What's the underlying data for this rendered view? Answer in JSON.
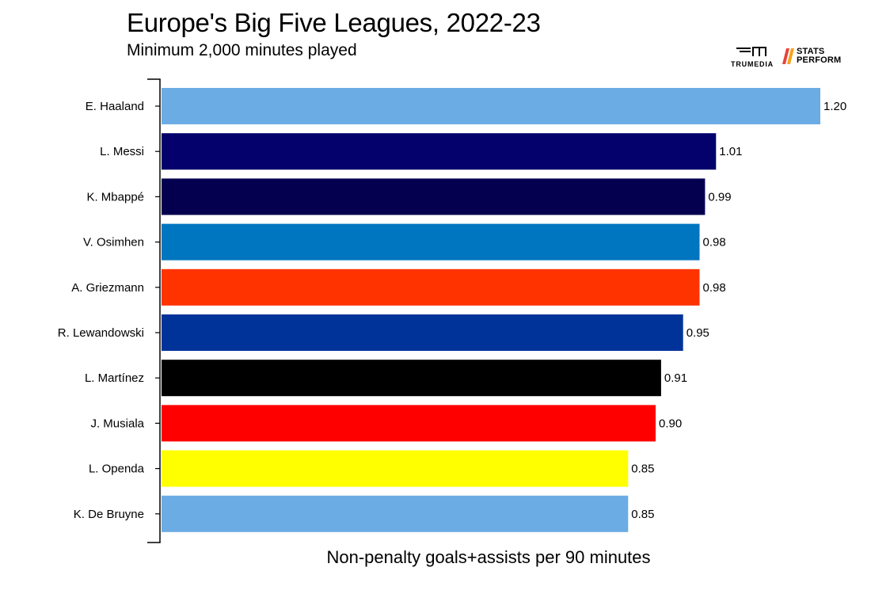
{
  "header": {
    "title": "Europe's Big Five Leagues, 2022-23",
    "subtitle": "Minimum 2,000 minutes played"
  },
  "logos": {
    "trumedia": "TRUMEDIA",
    "stats_perform_line1": "STATS",
    "stats_perform_line2": "PERFORM"
  },
  "chart_data": {
    "type": "bar",
    "orientation": "horizontal",
    "title": "Europe's Big Five Leagues, 2022-23",
    "subtitle": "Minimum 2,000 minutes played",
    "xlabel": "Non-penalty goals+assists per 90 minutes",
    "ylabel": "",
    "xlim": [
      0,
      1.2
    ],
    "grid": false,
    "categories": [
      "E. Haaland",
      "L. Messi",
      "K. Mbappé",
      "V. Osimhen",
      "A. Griezmann",
      "R. Lewandowski",
      "L. Martínez",
      "J. Musiala",
      "L. Openda",
      "K. De Bruyne"
    ],
    "values": [
      1.2,
      1.01,
      0.99,
      0.98,
      0.98,
      0.95,
      0.91,
      0.9,
      0.85,
      0.85
    ],
    "value_labels": [
      "1.20",
      "1.01",
      "0.99",
      "0.98",
      "0.98",
      "0.95",
      "0.91",
      "0.90",
      "0.85",
      "0.85"
    ],
    "colors": [
      "#6cace4",
      "#04006c",
      "#04004f",
      "#0075c0",
      "#ff3300",
      "#003399",
      "#000000",
      "#ff0000",
      "#ffff00",
      "#6cace4"
    ]
  }
}
